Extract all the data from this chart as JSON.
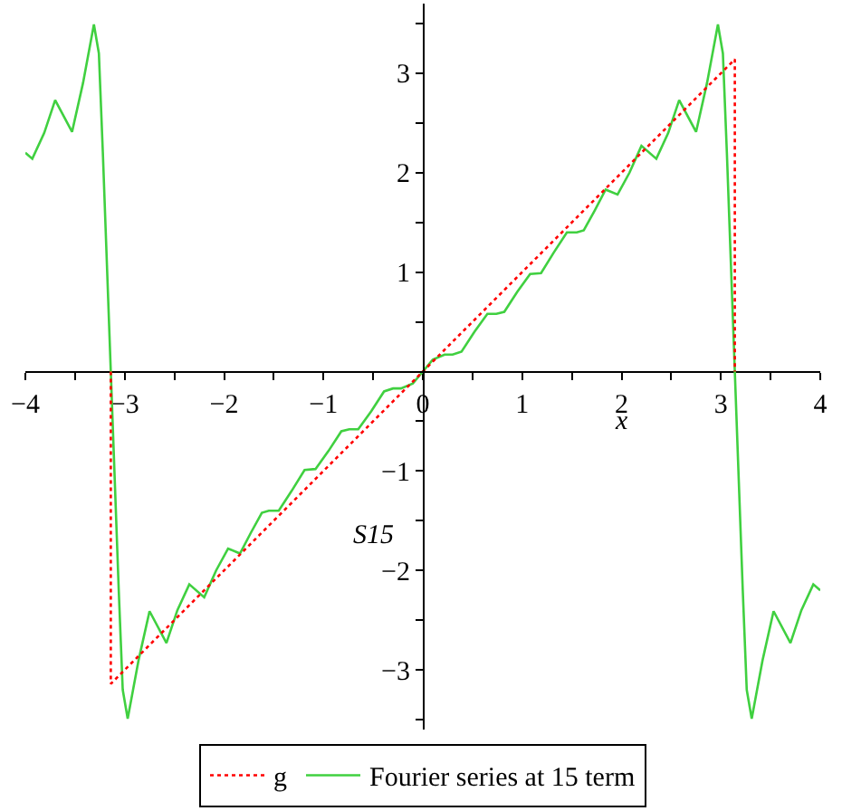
{
  "chart_data": {
    "type": "line",
    "xlabel": "x",
    "ylabel": "S15",
    "xlim": [
      -4,
      4
    ],
    "ylim": [
      -3.6,
      3.7
    ],
    "xticks": [
      -4,
      {
        "value": -3.5,
        "label": null
      },
      -3,
      {
        "value": -2.5,
        "label": null
      },
      -2,
      {
        "value": -1.5,
        "label": null
      },
      -1,
      {
        "value": -0.5,
        "label": null
      },
      0,
      {
        "value": 0.5,
        "label": null
      },
      1,
      {
        "value": 1.5,
        "label": null
      },
      2,
      {
        "value": 2.5,
        "label": null
      },
      3,
      {
        "value": 3.5,
        "label": null
      },
      4
    ],
    "yticks": [
      {
        "value": -3.5,
        "label": null
      },
      -3,
      {
        "value": -2.5,
        "label": null
      },
      -2,
      {
        "value": -1.5,
        "label": null
      },
      -1,
      {
        "value": -0.5,
        "label": null
      },
      {
        "value": 0,
        "label": null
      },
      {
        "value": 0.5,
        "label": null
      },
      1,
      {
        "value": 1.5,
        "label": null
      },
      2,
      {
        "value": 2.5,
        "label": null
      },
      3,
      {
        "value": 3.5,
        "label": null
      }
    ],
    "legend": "bottom",
    "marker": "none",
    "series": [
      {
        "name": "g",
        "color": "#ff0000",
        "line_style": "dotted",
        "x": [
          -3.14,
          -3.14,
          3.14,
          3.14
        ],
        "values": [
          0,
          -3.14,
          3.14,
          0
        ]
      },
      {
        "name": "Fourier series at 15 term",
        "color": "#40d040",
        "line_style": "solid",
        "x": [
          -4.0,
          -3.93,
          -3.81,
          -3.7,
          -3.53,
          -3.42,
          -3.31,
          -3.26,
          -3.22,
          -3.18,
          -3.14,
          -3.1,
          -3.06,
          -3.02,
          -2.97,
          -2.86,
          -2.75,
          -2.58,
          -2.47,
          -2.35,
          -2.2,
          -2.08,
          -1.96,
          -1.84,
          -1.73,
          -1.62,
          -1.55,
          -1.45,
          -1.32,
          -1.19,
          -1.08,
          -0.95,
          -0.82,
          -0.74,
          -0.65,
          -0.52,
          -0.39,
          -0.3,
          -0.22,
          -0.1,
          0,
          0.1,
          0.22,
          0.3,
          0.39,
          0.52,
          0.65,
          0.74,
          0.82,
          0.95,
          1.08,
          1.19,
          1.32,
          1.45,
          1.55,
          1.62,
          1.73,
          1.84,
          1.96,
          2.08,
          2.2,
          2.35,
          2.47,
          2.58,
          2.75,
          2.86,
          2.97,
          3.02,
          3.06,
          3.1,
          3.14,
          3.18,
          3.22,
          3.26,
          3.31,
          3.42,
          3.53,
          3.7,
          3.81,
          3.93,
          4.0
        ],
        "values": [
          2.2,
          2.14,
          2.4,
          2.73,
          2.41,
          2.9,
          3.49,
          3.2,
          2.2,
          1.1,
          0,
          -1.1,
          -2.2,
          -3.2,
          -3.49,
          -2.9,
          -2.41,
          -2.73,
          -2.4,
          -2.14,
          -2.27,
          -2.0,
          -1.78,
          -1.83,
          -1.62,
          -1.42,
          -1.4,
          -1.4,
          -1.2,
          -0.99,
          -0.98,
          -0.8,
          -0.6,
          -0.58,
          -0.58,
          -0.4,
          -0.2,
          -0.17,
          -0.17,
          -0.12,
          0,
          0.12,
          0.17,
          0.17,
          0.2,
          0.4,
          0.58,
          0.58,
          0.6,
          0.8,
          0.98,
          0.99,
          1.2,
          1.4,
          1.4,
          1.42,
          1.62,
          1.83,
          1.78,
          2.0,
          2.27,
          2.14,
          2.4,
          2.73,
          2.41,
          2.9,
          3.49,
          3.2,
          2.2,
          1.1,
          0,
          -1.1,
          -2.2,
          -3.2,
          -3.49,
          -2.9,
          -2.41,
          -2.73,
          -2.4,
          -2.14,
          -2.2
        ]
      }
    ]
  }
}
